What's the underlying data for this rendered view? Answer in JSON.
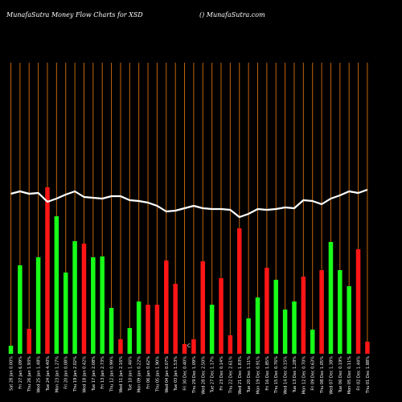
{
  "header": {
    "left_title": "MunafaSutra  Money Flow  Charts for XSD",
    "right_title": "() MunafaSutra.com"
  },
  "colors": {
    "background": "#000000",
    "grid": "#c2650b",
    "up": "#18ff18",
    "down": "#ff1515",
    "line": "#ffffff"
  },
  "chart_data": {
    "type": "bar",
    "marker_label": "C",
    "bars": [
      {
        "color": "up",
        "height": 10,
        "label": "Sat 28 Jan 0.00%"
      },
      {
        "color": "up",
        "height": 110,
        "label": "Fri 27 Jan 6.09%"
      },
      {
        "color": "down",
        "height": 31,
        "label": "Thu 26 Jan 1.93%"
      },
      {
        "color": "up",
        "height": 120,
        "label": "Wed 25 Jan 1.48%"
      },
      {
        "color": "down",
        "height": 207,
        "label": "Tue 24 Jan 4.40%"
      },
      {
        "color": "up",
        "height": 171,
        "label": "Mon 23 Jan 1.27%"
      },
      {
        "color": "up",
        "height": 101,
        "label": "Fri 20 Jan 0.08%"
      },
      {
        "color": "up",
        "height": 140,
        "label": "Thu 19 Jan 2.02%"
      },
      {
        "color": "down",
        "height": 137,
        "label": "Wed 18 Jan 0.42%"
      },
      {
        "color": "up",
        "height": 120,
        "label": "Tue 17 Jan 2.08%"
      },
      {
        "color": "up",
        "height": 121,
        "label": "Fri 13 Jan 2.73%"
      },
      {
        "color": "up",
        "height": 57,
        "label": "Thu 12 Jan 0.99%"
      },
      {
        "color": "down",
        "height": 18,
        "label": "Wed 11 Jan 2.16%"
      },
      {
        "color": "up",
        "height": 32,
        "label": "Tue 10 Jan 1.46%"
      },
      {
        "color": "up",
        "height": 65,
        "label": "Mon 09 Jan 0.22%"
      },
      {
        "color": "down",
        "height": 61,
        "label": "Fri 06 Jan 0.62%"
      },
      {
        "color": "down",
        "height": 61,
        "label": "Thu 05 Jan 1.90%"
      },
      {
        "color": "down",
        "height": 116,
        "label": "Wed 04 Jan 0.07%"
      },
      {
        "color": "down",
        "height": 87,
        "label": "Tue 03 Jan 1.53%"
      },
      {
        "color": "down",
        "height": 12,
        "label": "Fri 30 Dec 0.40%"
      },
      {
        "color": "down",
        "height": 18,
        "label": "Thu 29 Dec 1.09%"
      },
      {
        "color": "down",
        "height": 115,
        "label": "Wed 28 Dec 2.50%"
      },
      {
        "color": "up",
        "height": 61,
        "label": "Tue 27 Dec 1.17%"
      },
      {
        "color": "down",
        "height": 94,
        "label": "Fri 23 Dec 0.14%"
      },
      {
        "color": "down",
        "height": 23,
        "label": "Thu 22 Dec 2.61%"
      },
      {
        "color": "down",
        "height": 156,
        "label": "Wed 21 Dec 1.83%"
      },
      {
        "color": "up",
        "height": 44,
        "label": "Tue 20 Dec 1.11%"
      },
      {
        "color": "up",
        "height": 70,
        "label": "Mon 19 Dec 0.91%"
      },
      {
        "color": "down",
        "height": 107,
        "label": "Fri 16 Dec 1.85%"
      },
      {
        "color": "up",
        "height": 92,
        "label": "Thu 15 Dec 0.76%"
      },
      {
        "color": "up",
        "height": 55,
        "label": "Wed 14 Dec 0.15%"
      },
      {
        "color": "up",
        "height": 65,
        "label": "Tue 13 Dec 1.28%"
      },
      {
        "color": "down",
        "height": 96,
        "label": "Mon 12 Dec 0.70%"
      },
      {
        "color": "up",
        "height": 30,
        "label": "Fri 09 Dec 0.63%"
      },
      {
        "color": "down",
        "height": 104,
        "label": "Thu 08 Dec 1.05%"
      },
      {
        "color": "up",
        "height": 139,
        "label": "Wed 07 Dec 1.38%"
      },
      {
        "color": "up",
        "height": 104,
        "label": "Tue 06 Dec 0.19%"
      },
      {
        "color": "up",
        "height": 84,
        "label": "Mon 05 Dec 0.11%"
      },
      {
        "color": "down",
        "height": 130,
        "label": "Fri 02 Dec 1.44%"
      },
      {
        "color": "down",
        "height": 15,
        "label": "Thu 01 Dec 1.88%"
      }
    ],
    "line": [
      259,
      262,
      259,
      260,
      249,
      253,
      258,
      262,
      255,
      254,
      253,
      256,
      256,
      251,
      250,
      248,
      244,
      237,
      238,
      241,
      244,
      241,
      240,
      240,
      239,
      230,
      234,
      240,
      239,
      240,
      242,
      241,
      251,
      250,
      246,
      253,
      257,
      262,
      260,
      264
    ]
  }
}
